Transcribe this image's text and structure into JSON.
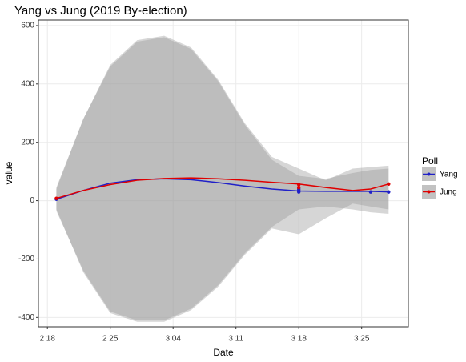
{
  "chart_data": {
    "type": "line",
    "title": "Yang vs Jung (2019 By-election)",
    "x_label": "Date",
    "y_label": "value",
    "legend_title": "Poll",
    "legend": "right",
    "grid": true,
    "x": [
      1,
      4,
      7,
      10,
      13,
      16,
      19,
      22,
      25,
      28,
      31,
      34,
      36,
      38
    ],
    "series": [
      {
        "name": "Yang",
        "color": "#2020c8",
        "values": [
          5,
          35,
          60,
          72,
          75,
          72,
          62,
          50,
          40,
          33,
          32,
          32,
          32,
          30
        ],
        "upper": [
          45,
          280,
          460,
          545,
          560,
          520,
          410,
          260,
          140,
          85,
          75,
          95,
          105,
          110
        ],
        "lower": [
          -35,
          -240,
          -380,
          -410,
          -410,
          -370,
          -290,
          -180,
          -90,
          -30,
          -20,
          -30,
          -40,
          -45
        ],
        "points_x": [
          1,
          28,
          28,
          28,
          36,
          38
        ],
        "points": [
          5,
          30,
          35,
          40,
          30,
          30
        ]
      },
      {
        "name": "Jung",
        "color": "#e00000",
        "values": [
          8,
          35,
          55,
          70,
          76,
          78,
          75,
          70,
          63,
          57,
          45,
          35,
          40,
          57
        ],
        "upper": [
          40,
          280,
          465,
          550,
          565,
          525,
          415,
          265,
          150,
          110,
          70,
          110,
          115,
          120
        ],
        "lower": [
          -30,
          -245,
          -385,
          -415,
          -415,
          -375,
          -295,
          -185,
          -95,
          -115,
          -60,
          -10,
          -20,
          -30
        ],
        "points_x": [
          1,
          28,
          28,
          38
        ],
        "points": [
          8,
          55,
          45,
          57
        ]
      }
    ],
    "xlim": [
      -1,
      40.2
    ],
    "xticks": [
      {
        "value": 0,
        "label": "2 18"
      },
      {
        "value": 7,
        "label": "2 25"
      },
      {
        "value": 14,
        "label": "3 04"
      },
      {
        "value": 21,
        "label": "3 11"
      },
      {
        "value": 28,
        "label": "3 18"
      },
      {
        "value": 35,
        "label": "3 25"
      }
    ],
    "ylim": [
      -432,
      619
    ],
    "yticks": [
      -400,
      -200,
      0,
      200,
      400,
      600
    ],
    "band_color": "#999999"
  }
}
